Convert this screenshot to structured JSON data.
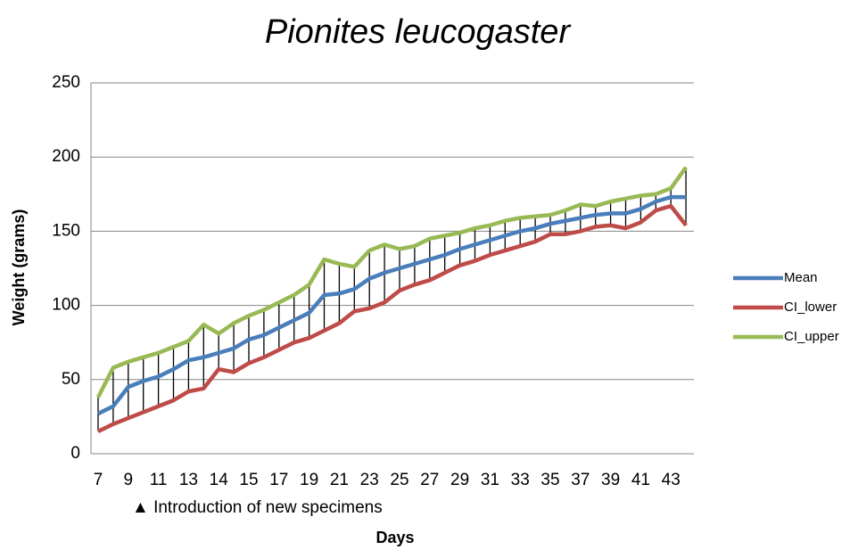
{
  "chart_data": {
    "type": "line",
    "title": "Pionites leucogaster",
    "x_label": "Days",
    "y_label": "Weight (grams)",
    "annotation": "▲ Introduction of new specimens",
    "categories": [
      "7",
      null,
      "9",
      null,
      "11",
      null,
      "13",
      null,
      "14",
      null,
      "15",
      null,
      "17",
      null,
      "19",
      null,
      "21",
      null,
      "23",
      null,
      "25",
      null,
      "27",
      null,
      "29",
      null,
      "31",
      null,
      "33",
      null,
      "35",
      null,
      "37",
      null,
      "39",
      null,
      "41",
      null,
      "43",
      null
    ],
    "series": [
      {
        "name": "Mean",
        "color": "#4a7ebb",
        "values": [
          27,
          32,
          45,
          49,
          52,
          57,
          63,
          65,
          68,
          71,
          77,
          80,
          85,
          90,
          95,
          107,
          108,
          111,
          118,
          122,
          125,
          128,
          131,
          134,
          138,
          141,
          144,
          147,
          150,
          152,
          155,
          157,
          159,
          161,
          162,
          162,
          165,
          170,
          173,
          173
        ]
      },
      {
        "name": "CI_lower",
        "color": "#be4b48",
        "values": [
          15,
          20,
          24,
          28,
          32,
          36,
          42,
          44,
          57,
          55,
          61,
          65,
          70,
          75,
          78,
          83,
          88,
          96,
          98,
          102,
          110,
          114,
          117,
          122,
          127,
          130,
          134,
          137,
          140,
          143,
          148,
          148,
          150,
          153,
          154,
          152,
          156,
          164,
          167,
          154
        ]
      },
      {
        "name": "CI_upper",
        "color": "#98b954",
        "values": [
          38,
          58,
          62,
          65,
          68,
          72,
          76,
          87,
          81,
          88,
          93,
          97,
          102,
          107,
          114,
          131,
          128,
          126,
          137,
          141,
          138,
          140,
          145,
          147,
          149,
          152,
          154,
          157,
          159,
          160,
          161,
          164,
          168,
          167,
          170,
          172,
          174,
          175,
          179,
          193
        ]
      }
    ],
    "ylim": [
      0,
      250
    ],
    "yticks": [
      0,
      50,
      100,
      150,
      200,
      250
    ],
    "grid": true,
    "legend": "right"
  }
}
